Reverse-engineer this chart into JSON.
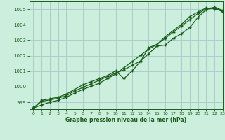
{
  "title": "Graphe pression niveau de la mer (hPa)",
  "bg_color": "#cceedd",
  "grid_color": "#aacccc",
  "line_color": "#1a5c1a",
  "xlim": [
    -0.5,
    23
  ],
  "ylim": [
    998.55,
    1005.5
  ],
  "yticks": [
    999,
    1000,
    1001,
    1002,
    1003,
    1004,
    1005
  ],
  "xticks": [
    0,
    1,
    2,
    3,
    4,
    5,
    6,
    7,
    8,
    9,
    10,
    11,
    12,
    13,
    14,
    15,
    16,
    17,
    18,
    19,
    20,
    21,
    22,
    23
  ],
  "series": [
    [
      998.62,
      999.05,
      999.15,
      999.25,
      999.42,
      999.72,
      999.95,
      1000.18,
      1000.42,
      1000.65,
      1000.88,
      1001.08,
      1001.38,
      1001.65,
      1002.12,
      1002.62,
      1002.68,
      1003.12,
      1003.42,
      1003.82,
      1004.48,
      1004.98,
      1005.08,
      1004.82
    ],
    [
      998.62,
      998.82,
      999.0,
      999.12,
      999.32,
      999.58,
      999.82,
      1000.02,
      1000.22,
      1000.52,
      1000.82,
      1001.22,
      1001.62,
      1002.02,
      1002.42,
      1002.72,
      1003.12,
      1003.52,
      1003.92,
      1004.32,
      1004.72,
      1005.02,
      1005.12,
      1004.92
    ],
    [
      998.62,
      999.12,
      999.22,
      999.32,
      999.52,
      999.82,
      1000.12,
      1000.32,
      1000.52,
      1000.72,
      1001.02,
      1000.52,
      1001.02,
      1001.62,
      1002.52,
      1002.72,
      1003.22,
      1003.62,
      1004.02,
      1004.52,
      1004.82,
      1005.08,
      1005.02,
      1004.88
    ]
  ]
}
